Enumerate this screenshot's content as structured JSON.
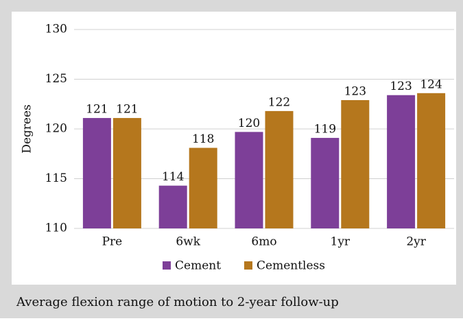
{
  "chart_data": {
    "type": "bar",
    "caption": "Average flexion range of motion to 2-year follow-up",
    "y_label": "Degrees",
    "categories": [
      "Pre",
      "6wk",
      "6mo",
      "1yr",
      "2yr"
    ],
    "series": [
      {
        "name": "Cement",
        "color": "#7d3f98",
        "values": [
          121.1,
          114.3,
          119.7,
          119.1,
          123.4
        ],
        "value_labels": [
          "121",
          "114",
          "120",
          "119",
          "123"
        ]
      },
      {
        "name": "Cementless",
        "color": "#b5771d",
        "values": [
          121.1,
          118.1,
          121.8,
          122.9,
          123.6
        ],
        "value_labels": [
          "121",
          "118",
          "122",
          "123",
          "124"
        ]
      }
    ],
    "ylim": [
      110,
      130
    ],
    "yticks": [
      110,
      115,
      120,
      125,
      130
    ],
    "grid": true
  }
}
